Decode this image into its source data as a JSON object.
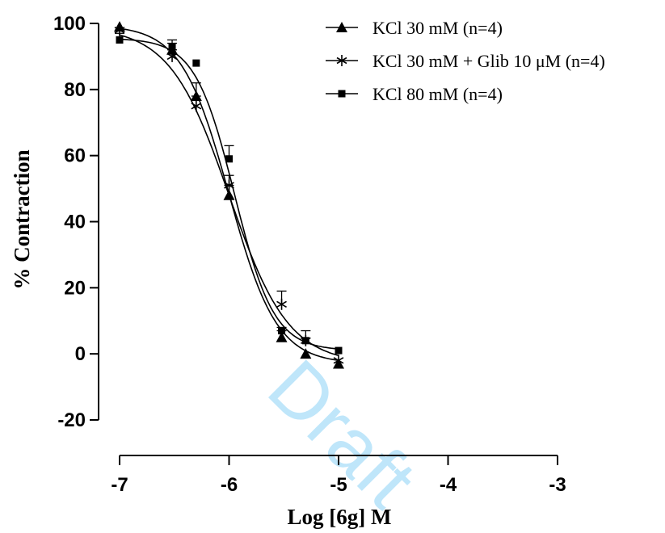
{
  "chart_data": {
    "type": "line",
    "xlabel": "Log [6g] M",
    "ylabel": "% Contraction",
    "xlim": [
      -7,
      -3
    ],
    "ylim": [
      -20,
      100
    ],
    "x_ticks": [
      "-7",
      "-6",
      "-5",
      "-4",
      "-3"
    ],
    "y_ticks": [
      "-20",
      "0",
      "20",
      "40",
      "60",
      "80",
      "100"
    ],
    "x_tick_values": [
      -7,
      -6,
      -5,
      -4,
      -3
    ],
    "y_tick_values": [
      -20,
      0,
      20,
      40,
      60,
      80,
      100
    ],
    "grid": false,
    "legend_position": "top-right",
    "watermark": "Draft",
    "series": [
      {
        "name": "KCl 30 mM (n=4)",
        "marker": "triangle",
        "x": [
          -7,
          -6.52,
          -6.3,
          -6,
          -5.52,
          -5.3,
          -5
        ],
        "y": [
          99,
          92,
          78,
          48,
          5,
          0,
          -3
        ],
        "err": [
          0,
          2,
          4,
          3,
          2,
          0,
          0
        ],
        "fit": {
          "top": 99.5,
          "bottom": -3,
          "logEC50": -6.0,
          "hill": -2.0
        }
      },
      {
        "name": "KCl 30 mM + Glib 10 μM (n=4)",
        "marker": "asterisk",
        "x": [
          -7,
          -6.52,
          -6.3,
          -6,
          -5.52,
          -5.3,
          -5
        ],
        "y": [
          98,
          90,
          75,
          51,
          15,
          4,
          -2
        ],
        "err": [
          0,
          2,
          3,
          3,
          4,
          3,
          0
        ],
        "fit": {
          "top": 99,
          "bottom": -3,
          "logEC50": -6.0,
          "hill": -1.6
        }
      },
      {
        "name": "KCl 80 mM  (n=4)",
        "marker": "square",
        "x": [
          -7,
          -6.52,
          -6.3,
          -6,
          -5.52,
          -5.3,
          -5
        ],
        "y": [
          95,
          93,
          88,
          59,
          7,
          4,
          1
        ],
        "err": [
          2,
          2,
          0,
          4,
          1,
          0,
          0
        ],
        "fit": {
          "top": 95.5,
          "bottom": 1,
          "logEC50": -5.95,
          "hill": -2.4
        }
      }
    ]
  }
}
